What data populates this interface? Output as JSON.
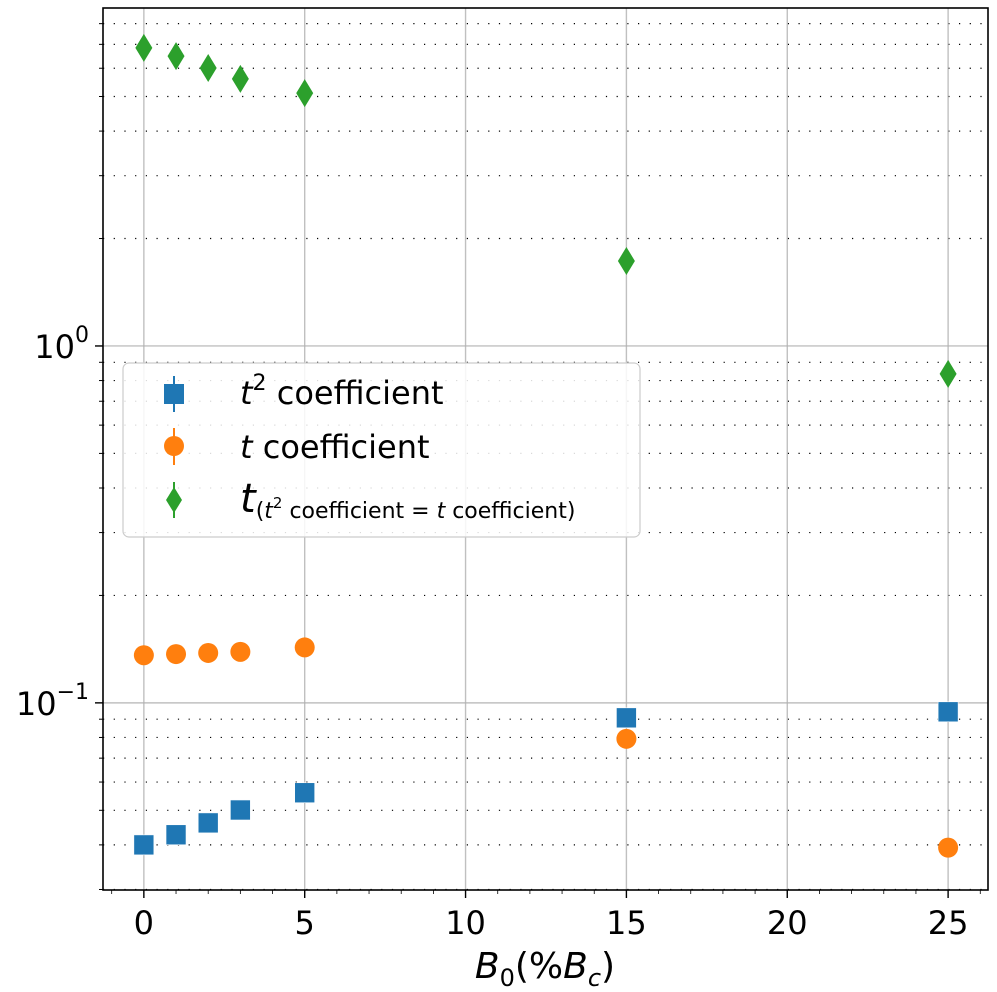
{
  "chart_data": {
    "type": "scatter",
    "title": "",
    "xlabel": "B_0(%B_c)",
    "xlabel_parts": {
      "main": "B",
      "sub": "0",
      "rest_open": "(%",
      "main2": "B",
      "sub2": "c",
      "rest_close": ")"
    },
    "ylabel": "",
    "xscale": "linear",
    "yscale": "log",
    "xlim": [
      -1.27,
      26.24
    ],
    "ylim": [
      0.0299,
      8.85
    ],
    "xticks": [
      0,
      5,
      10,
      15,
      20,
      25
    ],
    "xtick_labels": [
      "0",
      "5",
      "10",
      "15",
      "20",
      "25"
    ],
    "yticks": [
      0.1,
      1
    ],
    "ytick_labels": [
      {
        "base": "10",
        "exp": "−1"
      },
      {
        "base": "10",
        "exp": "0"
      }
    ],
    "grid": {
      "major": true,
      "minor_y": "dotted"
    },
    "legend_position": "center-left",
    "series": [
      {
        "name": "t^2 coefficient",
        "label_parts": {
          "var": "t",
          "sup": "2",
          "text": " coefficient"
        },
        "marker": "square",
        "color": "#1f77b4",
        "x": [
          0,
          1,
          2,
          3,
          5,
          15,
          25
        ],
        "y": [
          0.04,
          0.0427,
          0.0461,
          0.0501,
          0.056,
          0.0908,
          0.0944
        ]
      },
      {
        "name": "t coefficient",
        "label_parts": {
          "var": "t",
          "text": " coefficient"
        },
        "marker": "circle",
        "color": "#ff7f0e",
        "x": [
          0,
          1,
          2,
          3,
          5,
          15,
          25
        ],
        "y": [
          0.136,
          0.137,
          0.138,
          0.139,
          0.143,
          0.0793,
          0.0393
        ]
      },
      {
        "name": "t_(t^2 coefficient = t coefficient)",
        "label_parts": {
          "var": "t",
          "sub_open": "(",
          "sub_var": "t",
          "sub_sup": "2",
          "sub_text": " coefficient = ",
          "sub_var2": "t",
          "sub_text2": " coefficient)"
        },
        "marker": "diamond",
        "color": "#2ca02c",
        "x": [
          0,
          1,
          2,
          3,
          5,
          15,
          25
        ],
        "y": [
          6.84,
          6.49,
          6.01,
          5.6,
          5.11,
          1.73,
          0.835
        ]
      }
    ]
  }
}
